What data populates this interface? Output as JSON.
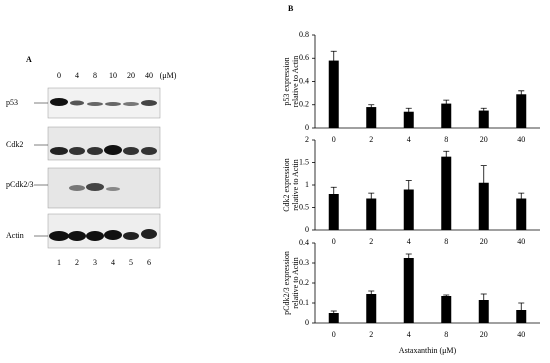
{
  "panel_a": {
    "label": "A",
    "concentrations": [
      "0",
      "4",
      "8",
      "10",
      "20",
      "40",
      "(μM)"
    ],
    "rows": [
      "p53",
      "Cdk2",
      "pCdk2/3",
      "Actin"
    ],
    "lanes": [
      "1",
      "2",
      "3",
      "4",
      "5",
      "6"
    ]
  },
  "panel_b_label": "B",
  "chart_data": [
    {
      "type": "bar",
      "ylabel": [
        "p53 expression",
        "relative to Actin"
      ],
      "categories": [
        "0",
        "2",
        "4",
        "8",
        "20",
        "40"
      ],
      "values": [
        0.58,
        0.18,
        0.14,
        0.21,
        0.15,
        0.29
      ],
      "errors": [
        0.08,
        0.02,
        0.03,
        0.03,
        0.02,
        0.03
      ],
      "color": "#000000",
      "ylim": [
        0,
        0.8
      ],
      "yticks": [
        0,
        0.2,
        0.4,
        0.6,
        0.8
      ]
    },
    {
      "type": "bar",
      "ylabel": [
        "Cdk2 expression",
        "relative to Actin"
      ],
      "categories": [
        "0",
        "2",
        "4",
        "8",
        "20",
        "40"
      ],
      "values": [
        0.8,
        0.7,
        0.9,
        1.63,
        1.05,
        0.7
      ],
      "errors": [
        0.15,
        0.12,
        0.2,
        0.12,
        0.38,
        0.12
      ],
      "color": "#000000",
      "ylim": [
        0,
        2
      ],
      "yticks": [
        0,
        0.5,
        1,
        1.5,
        2
      ]
    },
    {
      "type": "bar",
      "ylabel": [
        "pCdk2/3 expression",
        "relative to Actin"
      ],
      "categories": [
        "0",
        "2",
        "4",
        "8",
        "20",
        "40"
      ],
      "values": [
        0.05,
        0.145,
        0.325,
        0.135,
        0.115,
        0.065
      ],
      "errors": [
        0.01,
        0.015,
        0.02,
        0.005,
        0.03,
        0.035
      ],
      "color": "#000000",
      "ylim": [
        0,
        0.4
      ],
      "yticks": [
        0,
        0.1,
        0.2,
        0.3,
        0.4
      ],
      "xlabel": "Astaxanthin (μM)"
    }
  ]
}
